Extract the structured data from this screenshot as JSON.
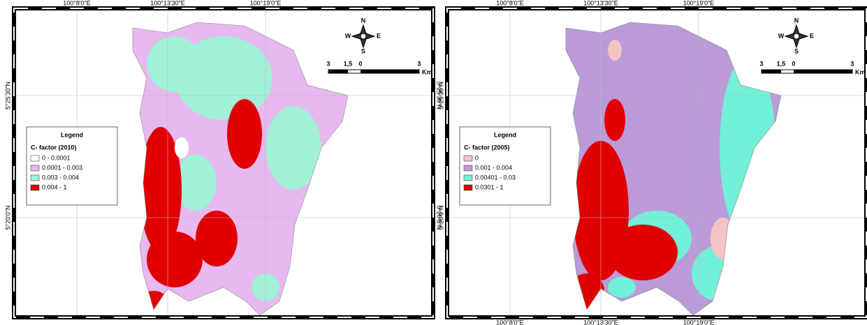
{
  "maps": [
    {
      "top_labels": [
        "100°8'0\"E",
        "100°13'30\"E",
        "100°19'0\"E"
      ],
      "left_labels": [
        "5°25'30\"N",
        "5°20'0\"N"
      ],
      "right_labels": [
        "5°25'30\"N",
        "5°20'0\"N"
      ],
      "bottom_labels": [],
      "compass": [
        "N",
        "E",
        "S",
        "W"
      ],
      "scale": {
        "labels": [
          "3",
          "1,5",
          "0",
          "3"
        ],
        "unit": "Km"
      },
      "legend": {
        "title": "Legend",
        "subtitle": "C- factor (2010)",
        "entries": [
          {
            "label": "0 - 0.0001",
            "color": "#ffffff"
          },
          {
            "label": "0.0001 - 0.003",
            "color": "#e8b8f0"
          },
          {
            "label": "0.003 - 0.004",
            "color": "#a2f0d8"
          },
          {
            "label": "0.004 - 1",
            "color": "#e00000"
          }
        ]
      }
    },
    {
      "top_labels": [
        "100°8'0\"E",
        "100°13'30\"E",
        "100°19'0\"E"
      ],
      "left_labels": [
        "5°25'30\"N",
        "5°20'0\"N"
      ],
      "right_labels": [],
      "bottom_labels": [
        "100°8'0\"E",
        "100°13'30\"E",
        "100°19'0\"E"
      ],
      "compass": [
        "N",
        "E",
        "S",
        "W"
      ],
      "scale": {
        "labels": [
          "3",
          "1,5",
          "0",
          "3"
        ],
        "unit": "Km"
      },
      "legend": {
        "title": "Legend",
        "subtitle": "C- factor (2005)",
        "entries": [
          {
            "label": "0",
            "color": "#f4c4c4"
          },
          {
            "label": "0.001 - 0.004",
            "color": "#bb9ad8"
          },
          {
            "label": "0.00401 - 0.03",
            "color": "#72f0d8"
          },
          {
            "label": "0.0301 - 1",
            "color": "#e00000"
          }
        ]
      }
    }
  ]
}
